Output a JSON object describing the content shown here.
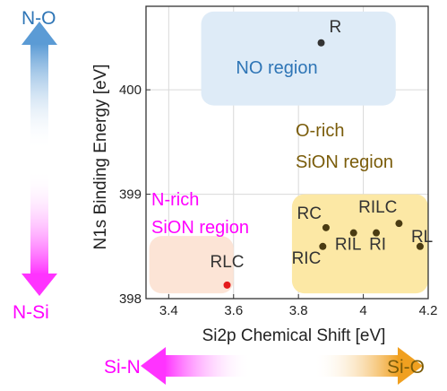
{
  "chart_data": {
    "type": "scatter",
    "xlabel": "Si2p Chemical Shift [eV]",
    "ylabel": "N1s Binding Energy [eV]",
    "xlim": [
      3.33,
      4.2
    ],
    "ylim": [
      398.0,
      400.8
    ],
    "xticks": [
      "3.4",
      "3.6",
      "3.8",
      "4",
      "4.2"
    ],
    "xtick_values": [
      3.4,
      3.6,
      3.8,
      4.0,
      4.2
    ],
    "yticks": [
      "398",
      "399",
      "400"
    ],
    "ytick_values": [
      398,
      399,
      400
    ],
    "grid": true,
    "points": [
      {
        "label": "R",
        "x": 3.87,
        "y": 400.45,
        "color": "#333333"
      },
      {
        "label": "RC",
        "x": 3.885,
        "y": 398.68,
        "color": "#4a3b12"
      },
      {
        "label": "RIC",
        "x": 3.875,
        "y": 398.5,
        "color": "#4a3b12"
      },
      {
        "label": "RIL",
        "x": 3.97,
        "y": 398.63,
        "color": "#4a3b12"
      },
      {
        "label": "RI",
        "x": 4.04,
        "y": 398.63,
        "color": "#4a3b12"
      },
      {
        "label": "RILC",
        "x": 4.11,
        "y": 398.72,
        "color": "#4a3b12"
      },
      {
        "label": "RL",
        "x": 4.175,
        "y": 398.5,
        "color": "#4a3b12"
      },
      {
        "label": "RLC",
        "x": 3.58,
        "y": 398.13,
        "color": "#e41a1c"
      }
    ],
    "regions": [
      {
        "name": "NO region",
        "lines": [
          "NO region"
        ],
        "x0": 3.5,
        "x1": 4.1,
        "y0": 399.85,
        "y1": 400.75,
        "fill": "#deebf7",
        "text_color": "#2e75b6"
      },
      {
        "name": "O-rich SiON region",
        "lines": [
          "O-rich",
          "SiON region"
        ],
        "x0": 3.78,
        "x1": 4.2,
        "y0": 398.05,
        "y1": 399.0,
        "fill": "#fce8a5",
        "text_color": "#7a5c0a"
      },
      {
        "name": "N-rich SiON region",
        "lines": [
          "N-rich",
          "SiON region"
        ],
        "x0": 3.34,
        "x1": 3.6,
        "y0": 398.05,
        "y1": 398.6,
        "fill": "#fce4d6",
        "text_color": "#ff00ff"
      }
    ]
  },
  "arrows": {
    "vertical_top_label": "N-O",
    "vertical_bottom_label": "N-Si",
    "horizontal_left_label": "Si-N",
    "horizontal_right_label": "Si-O"
  },
  "colors": {
    "blue": "#2e75b6",
    "magenta": "#ff00ff",
    "orange": "#e68a00",
    "point_red": "#e41a1c"
  }
}
